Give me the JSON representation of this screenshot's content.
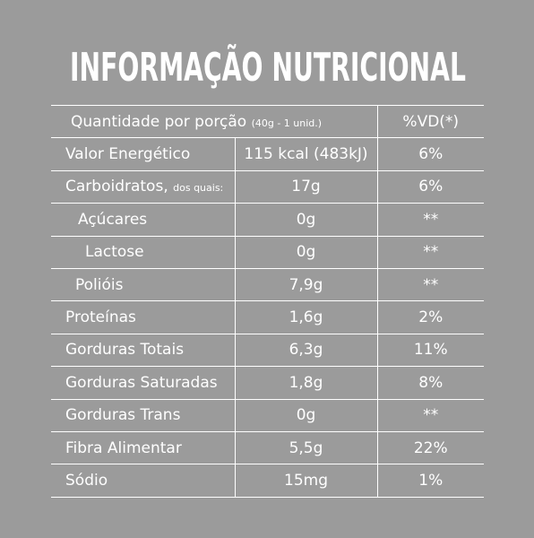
{
  "header": {
    "title": "INFORMAÇÃO NUTRICIONAL"
  },
  "table": {
    "head": {
      "serving": "Quantidade por porção",
      "serving_note": "(40g - 1 unid.)",
      "vd": "%VD(*)"
    },
    "rows": [
      {
        "label": "Valor Energético",
        "amount": "115 kcal (483kJ)",
        "vd": "6%"
      },
      {
        "label": "Carboidratos,",
        "note": "dos quais:",
        "amount": "17g",
        "vd": "6%"
      },
      {
        "label": "Açúcares",
        "amount": "0g",
        "vd": "**"
      },
      {
        "label": "Lactose",
        "amount": "0g",
        "vd": "**"
      },
      {
        "label": "Polióis",
        "amount": "7,9g",
        "vd": "**"
      },
      {
        "label": "Proteínas",
        "amount": "1,6g",
        "vd": "2%"
      },
      {
        "label": "Gorduras Totais",
        "amount": "6,3g",
        "vd": "11%"
      },
      {
        "label": "Gorduras Saturadas",
        "amount": "1,8g",
        "vd": "8%"
      },
      {
        "label": "Gorduras Trans",
        "amount": "0g",
        "vd": "**"
      },
      {
        "label": "Fibra Alimentar",
        "amount": "5,5g",
        "vd": "22%"
      },
      {
        "label": "Sódio",
        "amount": "15mg",
        "vd": "1%"
      }
    ]
  }
}
